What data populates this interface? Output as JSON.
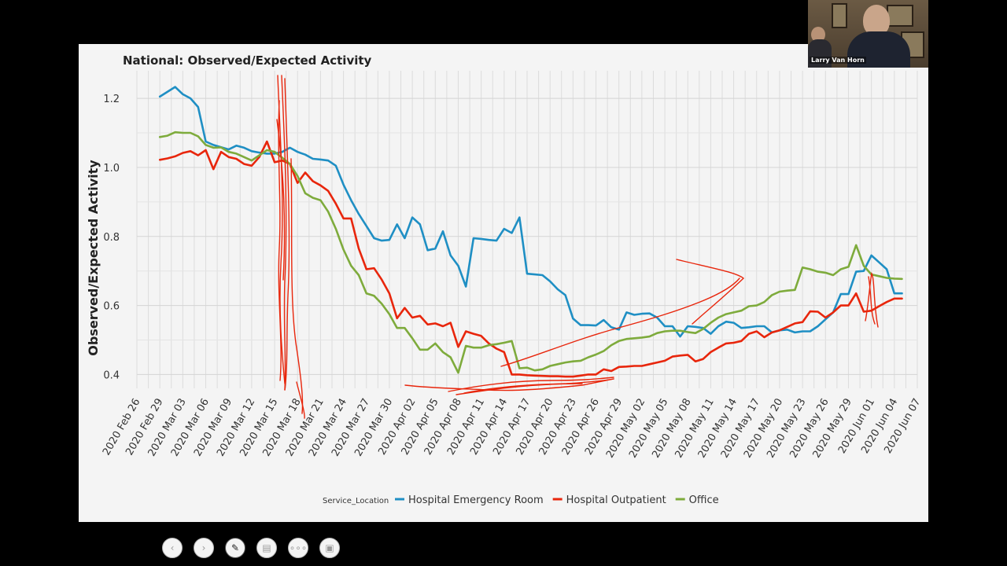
{
  "slide": {
    "speaker_name": "Larry Van Horn"
  },
  "toolbar": [
    {
      "name": "previous-slide-button",
      "icon": "chevron-left-icon",
      "glyph": "‹"
    },
    {
      "name": "next-slide-button",
      "icon": "chevron-right-icon",
      "glyph": "›"
    },
    {
      "name": "pen-tool-button",
      "icon": "pen-icon",
      "glyph": "✎"
    },
    {
      "name": "slides-overview-button",
      "icon": "slides-icon",
      "glyph": "▤"
    },
    {
      "name": "more-options-button",
      "icon": "ellipsis-icon",
      "glyph": "∘∘∘"
    },
    {
      "name": "presenter-view-button",
      "icon": "presenter-icon",
      "glyph": "▣"
    }
  ],
  "chart_data": {
    "type": "line",
    "title": "National: Observed/Expected Activity",
    "xlabel": "",
    "ylabel": "Observed/Expected Activity",
    "ylim": [
      0.36,
      1.28
    ],
    "yticks": [
      0.4,
      0.6,
      0.8,
      1.0,
      1.2
    ],
    "ytick_labels": [
      "0.4",
      "0.6",
      "0.8",
      "1.0",
      "1.2"
    ],
    "x_start": "2020-02-26",
    "xticks_day": [
      0,
      3,
      6,
      9,
      12,
      15,
      18,
      21,
      24,
      27,
      30,
      33,
      36,
      39,
      42,
      45,
      48,
      51,
      54,
      57,
      60,
      63,
      66,
      69,
      72,
      75,
      78,
      81,
      84,
      87,
      90,
      93,
      96,
      99,
      102
    ],
    "xtick_labels": [
      "2020 Feb 26",
      "2020 Feb 29",
      "2020 Mar 03",
      "2020 Mar 06",
      "2020 Mar 09",
      "2020 Mar 12",
      "2020 Mar 15",
      "2020 Mar 18",
      "2020 Mar 21",
      "2020 Mar 24",
      "2020 Mar 27",
      "2020 Mar 30",
      "2020 Apr 02",
      "2020 Apr 05",
      "2020 Apr 08",
      "2020 Apr 11",
      "2020 Apr 14",
      "2020 Apr 17",
      "2020 Apr 20",
      "2020 Apr 23",
      "2020 Apr 26",
      "2020 Apr 29",
      "2020 May 02",
      "2020 May 05",
      "2020 May 08",
      "2020 May 11",
      "2020 May 14",
      "2020 May 17",
      "2020 May 20",
      "2020 May 23",
      "2020 May 26",
      "2020 May 29",
      "2020 Jun 01",
      "2020 Jun 04",
      "2020 Jun 07"
    ],
    "grid": true,
    "legend": {
      "title": "Service_Location",
      "position": "bottom-center"
    },
    "day_range": [
      0,
      102
    ],
    "series": [
      {
        "name": "Hospital Emergency Room",
        "color": "#1f8fc4",
        "days": [
          3,
          5,
          6,
          7,
          8,
          9,
          10,
          12,
          13,
          14,
          15,
          16,
          17,
          18,
          19,
          20,
          21,
          22,
          23,
          24,
          25,
          26,
          27,
          28,
          29,
          30,
          31,
          32,
          33,
          34,
          35,
          36,
          37,
          38,
          39,
          40,
          41,
          42,
          43,
          44,
          45,
          46,
          47,
          48,
          49,
          50,
          51,
          52,
          53,
          54,
          55,
          56,
          57,
          58,
          59,
          60,
          61,
          62,
          63,
          64,
          65,
          66,
          67,
          68,
          69,
          70,
          71,
          72,
          73,
          74,
          75,
          76,
          77,
          78,
          79,
          80,
          81,
          82,
          83,
          84,
          85,
          86,
          87,
          88,
          89,
          90,
          91,
          92,
          93,
          94,
          95,
          96,
          97,
          98,
          99,
          100
        ],
        "values": [
          1.205,
          1.233,
          1.212,
          1.2,
          1.175,
          1.075,
          1.065,
          1.052,
          1.063,
          1.057,
          1.047,
          1.043,
          1.04,
          1.04,
          1.045,
          1.057,
          1.045,
          1.037,
          1.025,
          1.023,
          1.02,
          1.005,
          0.95,
          0.905,
          0.865,
          0.83,
          0.795,
          0.788,
          0.79,
          0.835,
          0.795,
          0.855,
          0.835,
          0.76,
          0.765,
          0.815,
          0.745,
          0.715,
          0.655,
          0.795,
          0.793,
          0.79,
          0.788,
          0.822,
          0.81,
          0.855,
          0.692,
          0.69,
          0.688,
          0.67,
          0.647,
          0.63,
          0.562,
          0.543,
          0.543,
          0.542,
          0.558,
          0.537,
          0.53,
          0.58,
          0.573,
          0.576,
          0.577,
          0.565,
          0.54,
          0.54,
          0.51,
          0.54,
          0.538,
          0.535,
          0.518,
          0.54,
          0.553,
          0.55,
          0.535,
          0.537,
          0.54,
          0.54,
          0.522,
          0.528,
          0.53,
          0.522,
          0.525,
          0.525,
          0.54,
          0.56,
          0.58,
          0.633,
          0.633,
          0.698,
          0.7,
          0.745,
          0.725,
          0.705,
          0.635,
          0.635
        ]
      },
      {
        "name": "Hospital Outpatient",
        "color": "#e8260c",
        "days": [
          3,
          4,
          5,
          6,
          7,
          8,
          9,
          10,
          11,
          12,
          13,
          14,
          15,
          16,
          17,
          18,
          19,
          20,
          21,
          22,
          23,
          24,
          25,
          26,
          27,
          28,
          29,
          30,
          31,
          32,
          33,
          34,
          35,
          36,
          37,
          38,
          39,
          40,
          41,
          42,
          43,
          44,
          45,
          46,
          47,
          48,
          49,
          50,
          51,
          52,
          53,
          54,
          55,
          56,
          57,
          58,
          59,
          60,
          61,
          62,
          63,
          64,
          65,
          66,
          67,
          68,
          69,
          70,
          71,
          72,
          73,
          74,
          75,
          76,
          77,
          78,
          79,
          80,
          81,
          82,
          83,
          84,
          85,
          86,
          87,
          88,
          89,
          90,
          91,
          92,
          93,
          94,
          95,
          96,
          97,
          98,
          99,
          100
        ],
        "values": [
          1.022,
          1.026,
          1.032,
          1.042,
          1.047,
          1.035,
          1.05,
          0.995,
          1.045,
          1.03,
          1.025,
          1.01,
          1.005,
          1.03,
          1.075,
          1.015,
          1.02,
          1.01,
          0.955,
          0.985,
          0.96,
          0.948,
          0.932,
          0.895,
          0.852,
          0.852,
          0.765,
          0.705,
          0.708,
          0.675,
          0.635,
          0.563,
          0.593,
          0.565,
          0.57,
          0.545,
          0.548,
          0.54,
          0.55,
          0.48,
          0.525,
          0.518,
          0.512,
          0.49,
          0.475,
          0.465,
          0.4,
          0.4,
          0.398,
          0.397,
          0.396,
          0.395,
          0.395,
          0.394,
          0.394,
          0.397,
          0.4,
          0.4,
          0.415,
          0.41,
          0.422,
          0.423,
          0.425,
          0.425,
          0.43,
          0.435,
          0.44,
          0.452,
          0.455,
          0.457,
          0.438,
          0.445,
          0.465,
          0.478,
          0.49,
          0.492,
          0.497,
          0.518,
          0.525,
          0.508,
          0.522,
          0.528,
          0.538,
          0.548,
          0.552,
          0.583,
          0.582,
          0.565,
          0.58,
          0.6,
          0.6,
          0.635,
          0.582,
          0.585,
          0.598,
          0.61,
          0.62,
          0.62
        ]
      },
      {
        "name": "Office",
        "color": "#7eab3c",
        "days": [
          3,
          4,
          5,
          6,
          7,
          8,
          9,
          10,
          11,
          12,
          13,
          14,
          15,
          16,
          17,
          18,
          19,
          20,
          21,
          22,
          23,
          24,
          25,
          26,
          27,
          28,
          29,
          30,
          31,
          32,
          33,
          34,
          35,
          36,
          37,
          38,
          39,
          40,
          41,
          42,
          43,
          44,
          45,
          46,
          47,
          48,
          49,
          50,
          51,
          52,
          53,
          54,
          55,
          56,
          57,
          58,
          59,
          60,
          61,
          62,
          63,
          64,
          65,
          66,
          67,
          68,
          69,
          70,
          71,
          72,
          73,
          74,
          75,
          76,
          77,
          78,
          79,
          80,
          81,
          82,
          83,
          84,
          85,
          86,
          87,
          88,
          89,
          90,
          91,
          92,
          93,
          94,
          95,
          96,
          97,
          98,
          99,
          100
        ],
        "values": [
          1.088,
          1.092,
          1.102,
          1.1,
          1.1,
          1.09,
          1.065,
          1.057,
          1.058,
          1.045,
          1.04,
          1.03,
          1.02,
          1.035,
          1.05,
          1.045,
          1.028,
          1.01,
          0.975,
          0.925,
          0.912,
          0.905,
          0.872,
          0.822,
          0.762,
          0.715,
          0.688,
          0.635,
          0.628,
          0.605,
          0.575,
          0.535,
          0.535,
          0.505,
          0.472,
          0.472,
          0.49,
          0.465,
          0.45,
          0.405,
          0.483,
          0.478,
          0.478,
          0.485,
          0.488,
          0.492,
          0.497,
          0.418,
          0.42,
          0.412,
          0.415,
          0.425,
          0.43,
          0.435,
          0.438,
          0.44,
          0.45,
          0.458,
          0.468,
          0.485,
          0.497,
          0.503,
          0.505,
          0.507,
          0.51,
          0.52,
          0.525,
          0.527,
          0.527,
          0.523,
          0.52,
          0.532,
          0.55,
          0.565,
          0.575,
          0.58,
          0.585,
          0.598,
          0.6,
          0.61,
          0.63,
          0.64,
          0.643,
          0.645,
          0.71,
          0.705,
          0.698,
          0.695,
          0.688,
          0.705,
          0.712,
          0.775,
          0.715,
          0.69,
          0.685,
          0.68,
          0.678,
          0.677
        ]
      }
    ]
  }
}
